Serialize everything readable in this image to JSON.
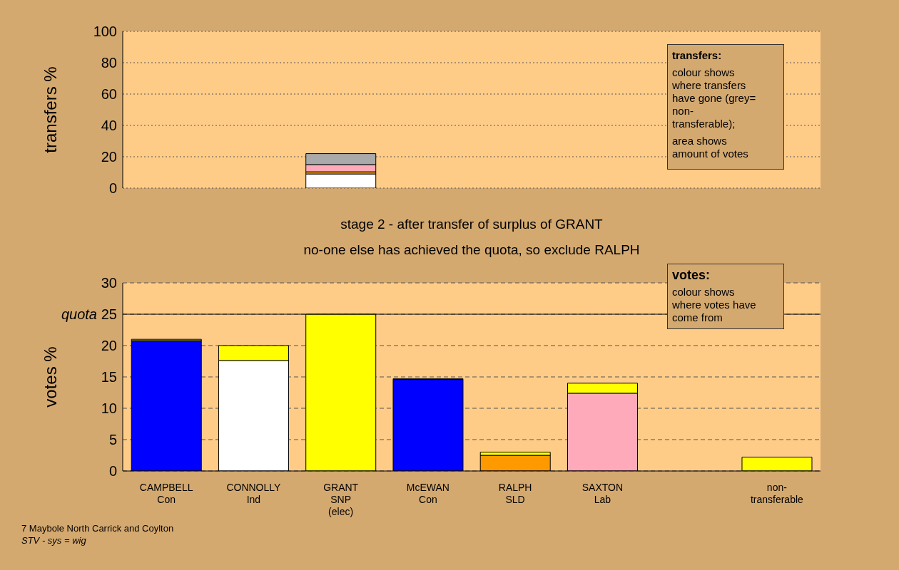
{
  "chart_data": [
    {
      "type": "bar",
      "ylabel": "transfers %",
      "categories": [
        null,
        null,
        null,
        null,
        null,
        null,
        null,
        null
      ],
      "stacked": true,
      "series": [
        {
          "color": "#ffffff",
          "values": [
            null,
            null,
            9.0,
            null,
            null,
            null,
            null,
            null
          ]
        },
        {
          "color": "#ff9900",
          "values": [
            null,
            null,
            1.4,
            null,
            null,
            null,
            null,
            null
          ]
        },
        {
          "color": "#ffaabb",
          "values": [
            null,
            null,
            4.6,
            null,
            null,
            null,
            null,
            null
          ]
        },
        {
          "color": "#aaaaaa",
          "values": [
            null,
            null,
            7.0,
            null,
            null,
            null,
            null,
            null
          ]
        }
      ],
      "ylim": [
        0,
        100
      ],
      "yticks": [
        0,
        20,
        40,
        60,
        80,
        100
      ],
      "grid": "y",
      "tick_labels": "y",
      "annotations": [
        "transfers:",
        "colour shows where transfers have gone (grey= non-transferable);",
        "area shows amount of votes"
      ]
    },
    {
      "type": "bar",
      "title": "stage 2 - after transfer of surplus of GRANT",
      "subtitle": "no-one else has achieved the quota, so exclude RALPH",
      "ylabel": "votes %",
      "categories": [
        "CAMPBELL\nCon",
        "CONNOLLY\nInd",
        "GRANT\nSNP\n(elec)",
        "McEWAN\nCon",
        "RALPH\nSLD",
        "SAXTON\nLab",
        null,
        "non-\ntransferable"
      ],
      "stacked": true,
      "series": [
        {
          "colors": [
            "#0000ff",
            "#ffffff",
            "#ffff00",
            "#0000ff",
            "#ff9900",
            "#ffaabb",
            "#ffff00",
            "#ffff00"
          ],
          "values": [
            20.8,
            17.6,
            25.0,
            14.6,
            2.5,
            12.4,
            null,
            null
          ]
        },
        {
          "color": "#ffff00",
          "values": [
            0.2,
            2.4,
            null,
            0.1,
            0.5,
            1.6,
            null,
            2.2
          ]
        }
      ],
      "ylim": [
        0,
        30
      ],
      "yticks": [
        0,
        5,
        10,
        15,
        20,
        25,
        30
      ],
      "grid": "y",
      "ref_lines": [
        {
          "axis": "y",
          "value": 25,
          "label": "quota",
          "color": "#000000",
          "line_style": "solid"
        }
      ],
      "annotations": [
        "votes:",
        "colour shows where votes have come from",
        "7 Maybole North Carrick and Coylton",
        "STV - sys = wig"
      ]
    }
  ]
}
